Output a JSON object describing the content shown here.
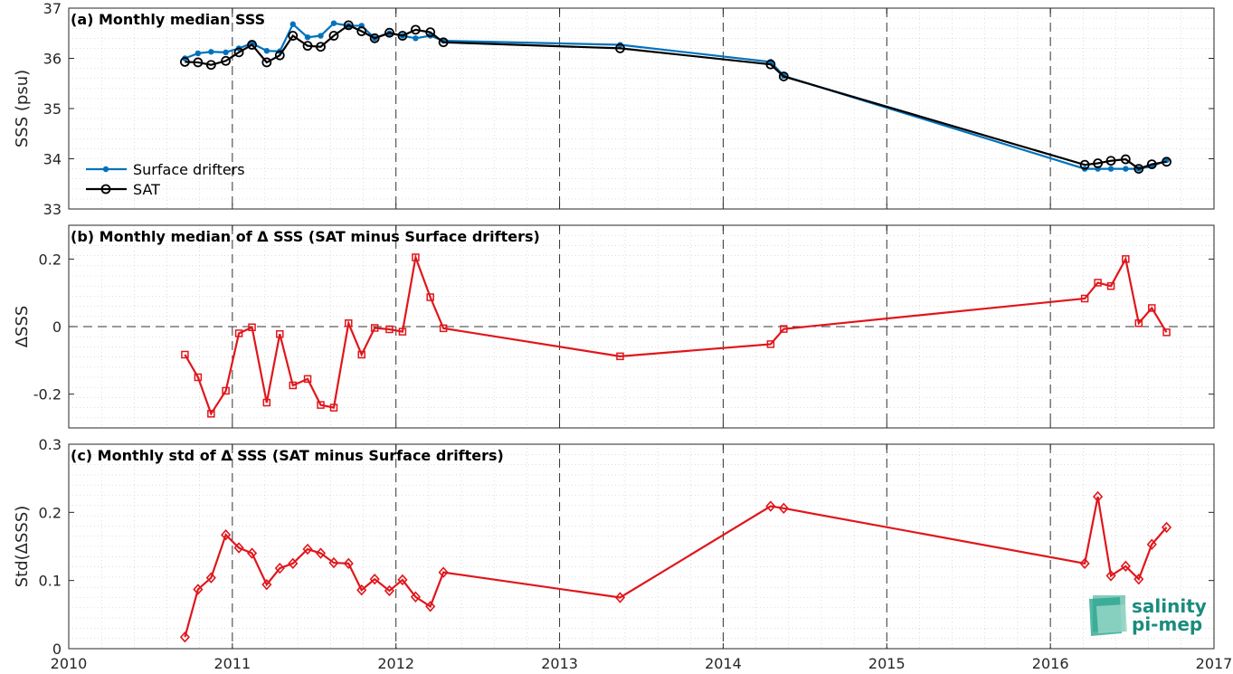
{
  "colors": {
    "drifters": "#0072BD",
    "sat": "#000000",
    "delta": "#E0161B",
    "logo": "#1a8c7e"
  },
  "logo": {
    "line1": "salinity",
    "line2": "pi-mep"
  },
  "chart_data": [
    {
      "id": "a",
      "type": "line",
      "title": "(a) Monthly median SSS",
      "xlabel": "",
      "ylabel": "SSS (psu)",
      "xlim": [
        2010,
        2017
      ],
      "ylim": [
        33,
        37
      ],
      "yticks": [
        33,
        34,
        35,
        36,
        37
      ],
      "ytick_labels": [
        "33",
        "34",
        "35",
        "36",
        "37"
      ],
      "grid": true,
      "legend": "bottom-left",
      "series": [
        {
          "name": "Surface drifters",
          "color": "#0072BD",
          "marker": "dot",
          "x": [
            2010.71,
            2010.79,
            2010.87,
            2010.96,
            2011.04,
            2011.12,
            2011.21,
            2011.29,
            2011.37,
            2011.46,
            2011.54,
            2011.62,
            2011.71,
            2011.79,
            2011.87,
            2011.96,
            2012.04,
            2012.12,
            2012.21,
            2012.29,
            2013.37,
            2014.29,
            2014.37,
            2016.21,
            2016.29,
            2016.37,
            2016.46,
            2016.54,
            2016.62,
            2016.71
          ],
          "values": [
            36.0,
            36.1,
            36.13,
            36.12,
            36.2,
            36.3,
            36.15,
            36.14,
            36.68,
            36.42,
            36.45,
            36.7,
            36.65,
            36.65,
            36.4,
            36.5,
            36.45,
            36.4,
            36.45,
            36.35,
            36.27,
            35.93,
            35.65,
            33.8,
            33.8,
            33.8,
            33.8,
            33.8,
            33.85,
            33.97
          ]
        },
        {
          "name": "SAT",
          "color": "#000000",
          "marker": "circle",
          "x": [
            2010.71,
            2010.79,
            2010.87,
            2010.96,
            2011.04,
            2011.12,
            2011.21,
            2011.29,
            2011.37,
            2011.46,
            2011.54,
            2011.62,
            2011.71,
            2011.79,
            2011.87,
            2011.96,
            2012.04,
            2012.12,
            2012.21,
            2012.29,
            2013.37,
            2014.29,
            2014.37,
            2016.21,
            2016.29,
            2016.37,
            2016.46,
            2016.54,
            2016.62,
            2016.71
          ],
          "values": [
            35.93,
            35.92,
            35.87,
            35.95,
            36.12,
            36.27,
            35.92,
            36.06,
            36.45,
            36.25,
            36.23,
            36.45,
            36.66,
            36.54,
            36.4,
            36.51,
            36.45,
            36.57,
            36.52,
            36.32,
            36.2,
            35.88,
            35.64,
            33.88,
            33.91,
            33.96,
            33.99,
            33.8,
            33.89,
            33.94
          ]
        }
      ]
    },
    {
      "id": "b",
      "type": "line",
      "title": "(b) Monthly median of Δ SSS (SAT minus Surface drifters)",
      "xlabel": "",
      "ylabel": "ΔSSS",
      "xlim": [
        2010,
        2017
      ],
      "ylim": [
        -0.3,
        0.3
      ],
      "yticks": [
        -0.2,
        0,
        0.2
      ],
      "ytick_labels": [
        "-0.2",
        "0",
        "0.2"
      ],
      "grid": true,
      "zero_line": true,
      "series": [
        {
          "name": "",
          "color": "#E0161B",
          "marker": "square",
          "x": [
            2010.71,
            2010.79,
            2010.87,
            2010.96,
            2011.04,
            2011.12,
            2011.21,
            2011.29,
            2011.37,
            2011.46,
            2011.54,
            2011.62,
            2011.71,
            2011.79,
            2011.87,
            2011.96,
            2012.04,
            2012.12,
            2012.21,
            2012.29,
            2013.37,
            2014.29,
            2014.37,
            2016.21,
            2016.29,
            2016.37,
            2016.46,
            2016.54,
            2016.62,
            2016.71
          ],
          "values": [
            -0.083,
            -0.15,
            -0.258,
            -0.19,
            -0.02,
            -0.002,
            -0.225,
            -0.022,
            -0.174,
            -0.155,
            -0.232,
            -0.24,
            0.01,
            -0.083,
            -0.004,
            -0.008,
            -0.015,
            0.205,
            0.087,
            -0.005,
            -0.088,
            -0.052,
            -0.007,
            0.083,
            0.13,
            0.12,
            0.2,
            0.01,
            0.055,
            -0.017
          ]
        }
      ]
    },
    {
      "id": "c",
      "type": "line",
      "title": "(c) Monthly std of Δ SSS (SAT minus Surface drifters)",
      "xlabel": "",
      "ylabel": "Std(ΔSSS)",
      "xlim": [
        2010,
        2017
      ],
      "ylim": [
        0,
        0.3
      ],
      "yticks": [
        0,
        0.1,
        0.2,
        0.3
      ],
      "ytick_labels": [
        "0",
        "0.1",
        "0.2",
        "0.3"
      ],
      "xticks": [
        2010,
        2011,
        2012,
        2013,
        2014,
        2015,
        2016,
        2017
      ],
      "xtick_labels": [
        "2010",
        "2011",
        "2012",
        "2013",
        "2014",
        "2015",
        "2016",
        "2017"
      ],
      "grid": true,
      "series": [
        {
          "name": "",
          "color": "#E0161B",
          "marker": "diamond",
          "x": [
            2010.71,
            2010.79,
            2010.87,
            2010.96,
            2011.04,
            2011.12,
            2011.21,
            2011.29,
            2011.37,
            2011.46,
            2011.54,
            2011.62,
            2011.71,
            2011.79,
            2011.87,
            2011.96,
            2012.04,
            2012.12,
            2012.21,
            2012.29,
            2013.37,
            2014.29,
            2014.37,
            2016.21,
            2016.29,
            2016.37,
            2016.46,
            2016.54,
            2016.62,
            2016.71
          ],
          "values": [
            0.017,
            0.087,
            0.104,
            0.167,
            0.148,
            0.14,
            0.094,
            0.118,
            0.125,
            0.146,
            0.14,
            0.126,
            0.125,
            0.086,
            0.102,
            0.085,
            0.101,
            0.076,
            0.062,
            0.112,
            0.075,
            0.209,
            0.206,
            0.125,
            0.223,
            0.107,
            0.121,
            0.102,
            0.153,
            0.178
          ]
        }
      ]
    }
  ]
}
